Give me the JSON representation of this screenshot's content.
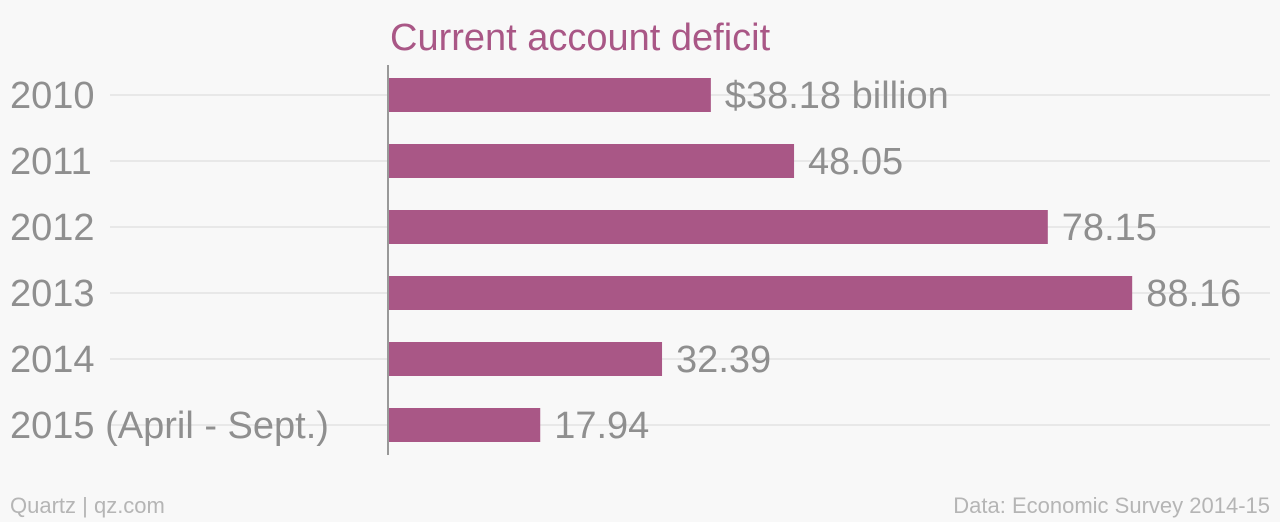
{
  "chart_data": {
    "type": "bar",
    "orientation": "horizontal",
    "title": "Current account deficit",
    "categories": [
      "2010",
      "2011",
      "2012",
      "2013",
      "2014",
      "2015 (April - Sept.)"
    ],
    "values": [
      38.18,
      48.05,
      78.15,
      88.16,
      32.39,
      17.94
    ],
    "value_labels": [
      "$38.18 billion",
      "48.05",
      "78.15",
      "88.16",
      "32.39",
      "17.94"
    ],
    "xlim": [
      0,
      100
    ],
    "grid": true,
    "colors": {
      "bar": "#a95786",
      "title": "#a95786",
      "labels": "#8f8f8f",
      "grid": "#e8e8e8",
      "axis": "#999999",
      "footer": "#b5b5b5",
      "background": "#f8f8f8"
    }
  },
  "footer": {
    "left": "Quartz | qz.com",
    "right": "Data: Economic Survey 2014-15"
  }
}
